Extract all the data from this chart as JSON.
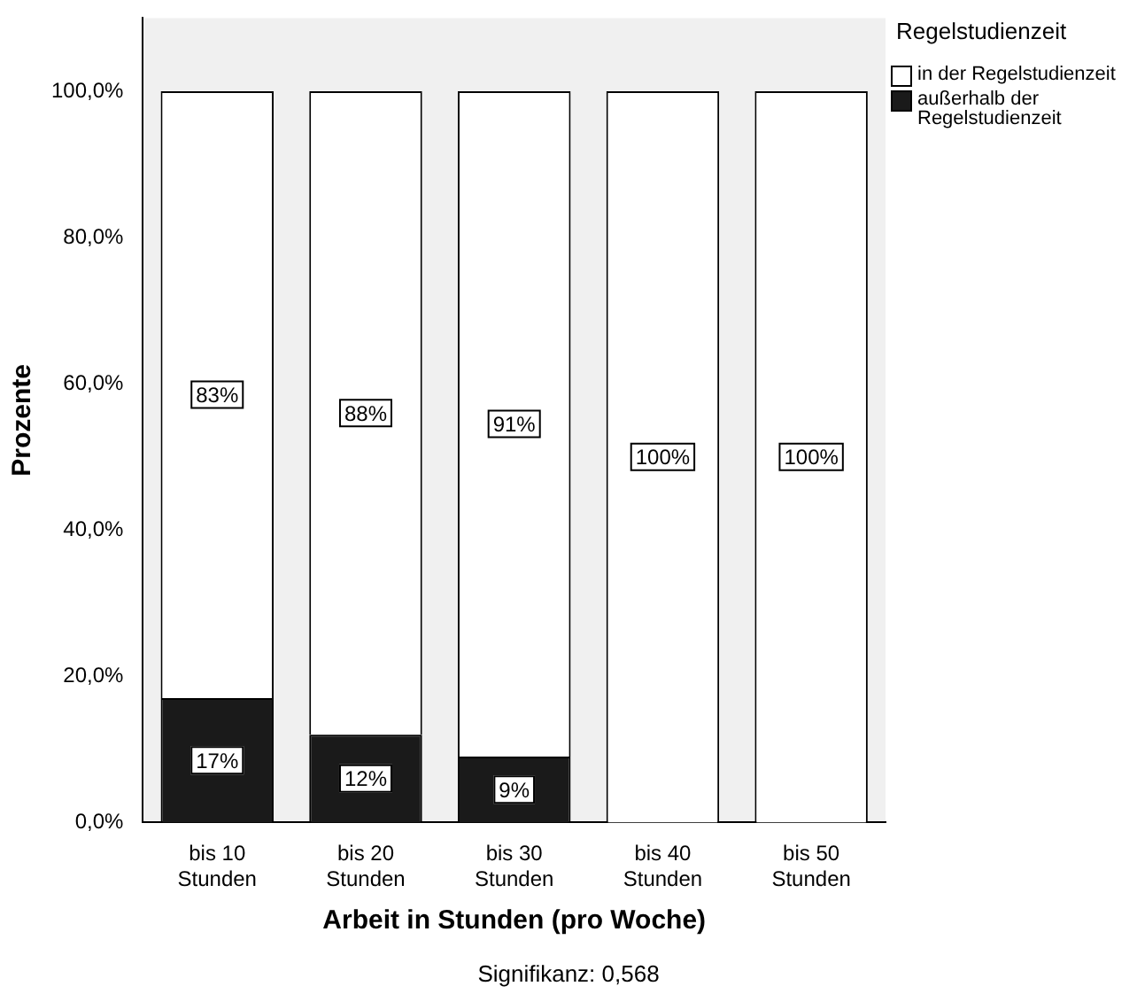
{
  "chart_data": {
    "type": "bar",
    "stacked": true,
    "xlabel": "Arbeit in Stunden (pro Woche)",
    "ylabel": "Prozente",
    "legend_title": "Regelstudienzeit",
    "legend": "top right",
    "grid": false,
    "categories": [
      "bis 10\nStunden",
      "bis 20\nStunden",
      "bis 30\nStunden",
      "bis 40\nStunden",
      "bis 50\nStunden"
    ],
    "series": [
      {
        "name": "außerhalb der Regelstudienzeit",
        "color": "#1a1a1a",
        "values": [
          17,
          12,
          9,
          0,
          0
        ],
        "value_labels": [
          "17%",
          "12%",
          "9%",
          null,
          null
        ]
      },
      {
        "name": "in der Regelstudienzeit",
        "color": "#ffffff",
        "values": [
          83,
          88,
          91,
          100,
          100
        ],
        "value_labels": [
          "83%",
          "88%",
          "91%",
          "100%",
          "100%"
        ]
      }
    ],
    "ylim": [
      0,
      110
    ],
    "yticks": [
      {
        "value": 0,
        "label": "0,0%"
      },
      {
        "value": 20,
        "label": "20,0%"
      },
      {
        "value": 40,
        "label": "40,0%"
      },
      {
        "value": 60,
        "label": "60,0%"
      },
      {
        "value": 80,
        "label": "80,0%"
      },
      {
        "value": 100,
        "label": "100,0%"
      }
    ],
    "annotations": [
      "Signifikanz: 0,568"
    ]
  }
}
